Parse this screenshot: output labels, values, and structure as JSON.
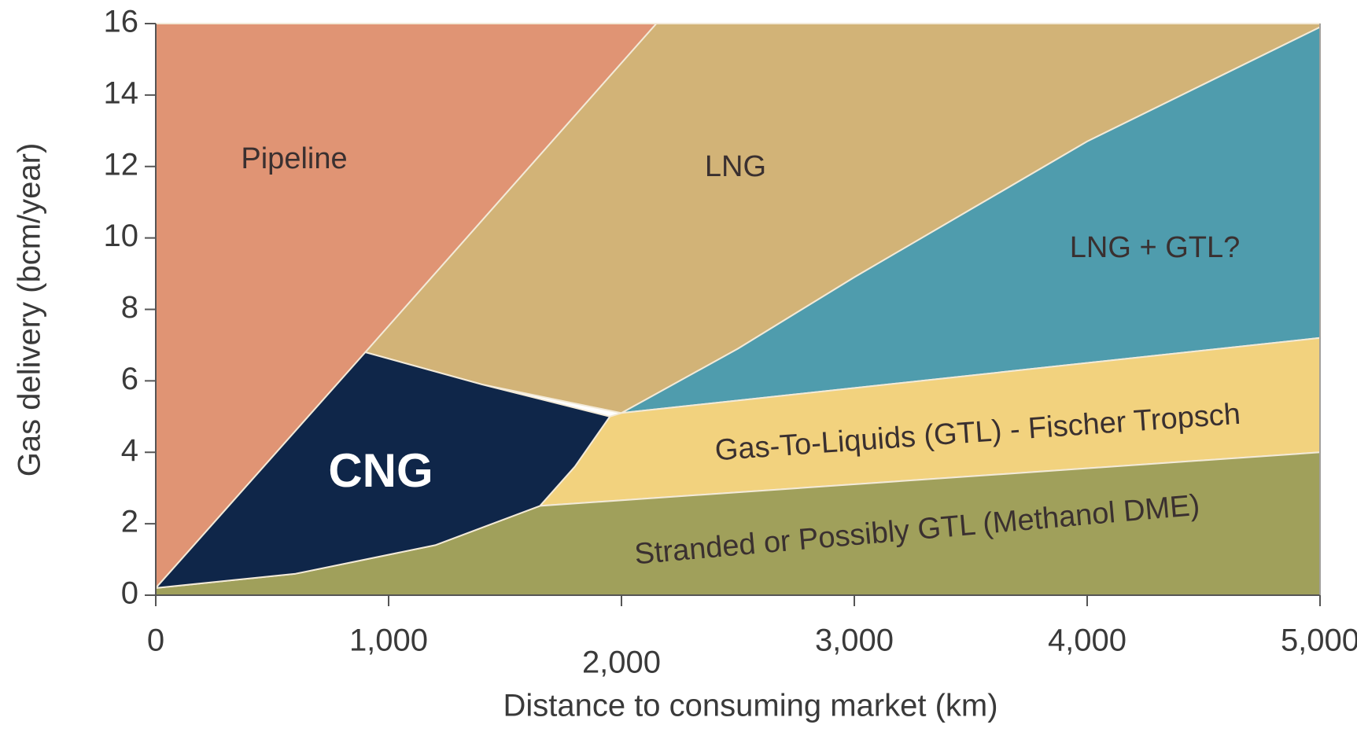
{
  "chart_data": {
    "type": "area-regions",
    "xlabel": "Distance to consuming market (km)",
    "ylabel": "Gas delivery (bcm/year)",
    "xlim": [
      0,
      5000
    ],
    "ylim": [
      0,
      16
    ],
    "xticks": [
      0,
      {
        "value": 1000,
        "label": "1,000"
      },
      {
        "value": 2000,
        "label": "2,000"
      },
      {
        "value": 3000,
        "label": "3,000"
      },
      {
        "value": 4000,
        "label": "4,000"
      },
      {
        "value": 5000,
        "label": "5,000"
      }
    ],
    "yticks": [
      0,
      2,
      4,
      6,
      8,
      10,
      12,
      14,
      16
    ],
    "regions": [
      {
        "name": "Pipeline",
        "color": "#e09474",
        "x": [
          0,
          0,
          2150,
          900
        ],
        "y": [
          0.2,
          16,
          16,
          6.8
        ]
      },
      {
        "name": "LNG",
        "color": "#d2b377",
        "x": [
          900,
          2150,
          5000,
          5000,
          4500,
          4000,
          3500,
          3000,
          2500,
          2000,
          1400
        ],
        "y": [
          6.8,
          16,
          16,
          15.9,
          14.3,
          12.7,
          10.8,
          8.9,
          6.9,
          5.1,
          5.9
        ]
      },
      {
        "name": "LNG + GTL?",
        "color": "#4f9cad",
        "x": [
          2000,
          5000,
          5000,
          4500,
          4000,
          3500,
          3000,
          2500
        ],
        "y": [
          5.1,
          7.2,
          15.9,
          14.3,
          12.7,
          10.8,
          8.9,
          6.9
        ]
      },
      {
        "name": "Gas-To-Liquids (GTL) - Fischer Tropsch",
        "color": "#f2d27e",
        "x": [
          1950,
          2000,
          5000,
          5000,
          1650,
          1800
        ],
        "y": [
          5.0,
          5.1,
          7.2,
          4.0,
          2.5,
          3.6
        ]
      },
      {
        "name": "Stranded or Possibly GTL (Methanol DME)",
        "color": "#a0a05b",
        "x": [
          0,
          600,
          1200,
          1650,
          5000,
          5000,
          0
        ],
        "y": [
          0.2,
          0.6,
          1.4,
          2.5,
          4.0,
          0,
          0
        ]
      },
      {
        "name": "CNG",
        "color": "#0f2649",
        "x": [
          0,
          900,
          1400,
          1950,
          1800,
          1650,
          1200,
          600
        ],
        "y": [
          0.2,
          6.8,
          5.9,
          5.0,
          3.6,
          2.5,
          1.4,
          0.6
        ]
      }
    ]
  }
}
